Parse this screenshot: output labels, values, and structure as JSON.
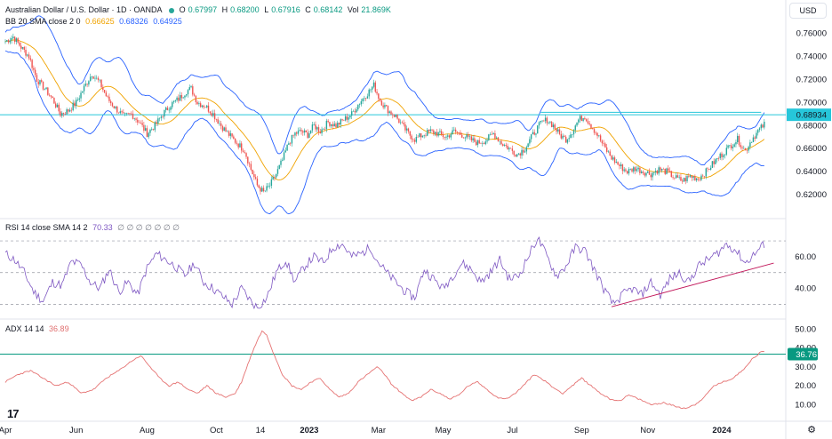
{
  "header": {
    "title": "Australian Dollar / U.S. Dollar · 1D · OANDA",
    "ohlc": {
      "o_label": "O",
      "o": "0.67997",
      "h_label": "H",
      "h": "0.68200",
      "l_label": "L",
      "l": "0.67916",
      "c_label": "C",
      "c": "0.68142",
      "vol_label": "Vol",
      "vol": "21.869K"
    }
  },
  "currency_button": "USD",
  "indicators": {
    "bb": {
      "label": "BB 20 SMA close 2 0",
      "basis": "0.66625",
      "upper": "0.68326",
      "lower": "0.64925"
    },
    "rsi": {
      "label": "RSI 14 close SMA 14 2",
      "value": "70.33",
      "extra": "∅ ∅ ∅ ∅ ∅ ∅ ∅"
    },
    "adx": {
      "label": "ADX 14 14",
      "value": "36.89"
    }
  },
  "colors": {
    "up": "#26a69a",
    "down": "#ef5350",
    "bb_band": "#2962ff",
    "bb_basis": "#f0a300",
    "hline": "#26c6da",
    "rsi": "#7e57c2",
    "adx": "#e57373",
    "adx_hline": "#089981"
  },
  "chart_data": [
    {
      "type": "candlestick",
      "name": "AUD/USD price",
      "ylim": [
        0.61,
        0.772
      ],
      "yticks": [
        "0.76000",
        "0.74000",
        "0.72000",
        "0.70000",
        "0.68000",
        "0.66000",
        "0.64000",
        "0.62000"
      ],
      "ytick_values": [
        0.76,
        0.74,
        0.72,
        0.7,
        0.68,
        0.66,
        0.64,
        0.62
      ],
      "horizontal_line": {
        "value": 0.68934,
        "label": "0.68934"
      },
      "close_path": [
        [
          0,
          0.753
        ],
        [
          5,
          0.757
        ],
        [
          10,
          0.748
        ],
        [
          15,
          0.74
        ],
        [
          20,
          0.72
        ],
        [
          25,
          0.712
        ],
        [
          30,
          0.703
        ],
        [
          35,
          0.69
        ],
        [
          40,
          0.693
        ],
        [
          45,
          0.7
        ],
        [
          50,
          0.713
        ],
        [
          55,
          0.725
        ],
        [
          60,
          0.717
        ],
        [
          65,
          0.703
        ],
        [
          70,
          0.695
        ],
        [
          75,
          0.688
        ],
        [
          80,
          0.69
        ],
        [
          85,
          0.683
        ],
        [
          90,
          0.673
        ],
        [
          95,
          0.68
        ],
        [
          100,
          0.69
        ],
        [
          105,
          0.698
        ],
        [
          110,
          0.703
        ],
        [
          115,
          0.71
        ],
        [
          118,
          0.712
        ],
        [
          122,
          0.7
        ],
        [
          127,
          0.697
        ],
        [
          132,
          0.69
        ],
        [
          137,
          0.68
        ],
        [
          142,
          0.672
        ],
        [
          147,
          0.665
        ],
        [
          152,
          0.658
        ],
        [
          156,
          0.642
        ],
        [
          160,
          0.628
        ],
        [
          164,
          0.622
        ],
        [
          168,
          0.628
        ],
        [
          172,
          0.638
        ],
        [
          176,
          0.65
        ],
        [
          180,
          0.665
        ],
        [
          184,
          0.673
        ],
        [
          188,
          0.675
        ],
        [
          192,
          0.672
        ],
        [
          196,
          0.68
        ],
        [
          200,
          0.675
        ],
        [
          205,
          0.683
        ],
        [
          210,
          0.68
        ],
        [
          215,
          0.685
        ],
        [
          220,
          0.69
        ],
        [
          225,
          0.7
        ],
        [
          230,
          0.708
        ],
        [
          234,
          0.715
        ],
        [
          237,
          0.705
        ],
        [
          240,
          0.698
        ],
        [
          244,
          0.692
        ],
        [
          248,
          0.688
        ],
        [
          252,
          0.68
        ],
        [
          256,
          0.673
        ],
        [
          260,
          0.668
        ],
        [
          265,
          0.672
        ],
        [
          270,
          0.675
        ],
        [
          275,
          0.673
        ],
        [
          280,
          0.67
        ],
        [
          285,
          0.675
        ],
        [
          290,
          0.672
        ],
        [
          295,
          0.668
        ],
        [
          300,
          0.665
        ],
        [
          305,
          0.667
        ],
        [
          310,
          0.673
        ],
        [
          315,
          0.665
        ],
        [
          320,
          0.66
        ],
        [
          325,
          0.655
        ],
        [
          330,
          0.66
        ],
        [
          335,
          0.672
        ],
        [
          340,
          0.682
        ],
        [
          344,
          0.685
        ],
        [
          348,
          0.68
        ],
        [
          352,
          0.672
        ],
        [
          356,
          0.668
        ],
        [
          360,
          0.675
        ],
        [
          364,
          0.685
        ],
        [
          368,
          0.688
        ],
        [
          372,
          0.68
        ],
        [
          376,
          0.672
        ],
        [
          380,
          0.662
        ],
        [
          385,
          0.652
        ],
        [
          390,
          0.645
        ],
        [
          395,
          0.64
        ],
        [
          400,
          0.643
        ],
        [
          405,
          0.64
        ],
        [
          410,
          0.638
        ],
        [
          415,
          0.642
        ],
        [
          420,
          0.64
        ],
        [
          425,
          0.635
        ],
        [
          430,
          0.632
        ],
        [
          435,
          0.636
        ],
        [
          440,
          0.634
        ],
        [
          445,
          0.64
        ],
        [
          450,
          0.648
        ],
        [
          455,
          0.655
        ],
        [
          460,
          0.662
        ],
        [
          465,
          0.668
        ],
        [
          470,
          0.658
        ],
        [
          474,
          0.668
        ],
        [
          478,
          0.675
        ],
        [
          482,
          0.681
        ]
      ]
    },
    {
      "type": "line",
      "name": "RSI",
      "ylim": [
        23,
        79
      ],
      "yticks": [
        "60.00",
        "40.00"
      ],
      "ytick_values": [
        60,
        40
      ],
      "bands": [
        70,
        50,
        30
      ],
      "trendline": [
        [
          385,
          28.5
        ],
        [
          488,
          56
        ]
      ],
      "values": [
        [
          0,
          62
        ],
        [
          6,
          58
        ],
        [
          12,
          50
        ],
        [
          18,
          38
        ],
        [
          24,
          32
        ],
        [
          30,
          44
        ],
        [
          36,
          42
        ],
        [
          42,
          57
        ],
        [
          48,
          55
        ],
        [
          54,
          44
        ],
        [
          60,
          40
        ],
        [
          66,
          52
        ],
        [
          72,
          38
        ],
        [
          78,
          44
        ],
        [
          84,
          36
        ],
        [
          90,
          53
        ],
        [
          96,
          62
        ],
        [
          102,
          58
        ],
        [
          108,
          54
        ],
        [
          114,
          48
        ],
        [
          120,
          56
        ],
        [
          126,
          44
        ],
        [
          132,
          40
        ],
        [
          138,
          35
        ],
        [
          144,
          30
        ],
        [
          150,
          40
        ],
        [
          156,
          32
        ],
        [
          160,
          28
        ],
        [
          166,
          34
        ],
        [
          172,
          50
        ],
        [
          178,
          58
        ],
        [
          184,
          44
        ],
        [
          190,
          54
        ],
        [
          196,
          60
        ],
        [
          202,
          56
        ],
        [
          208,
          66
        ],
        [
          214,
          68
        ],
        [
          220,
          60
        ],
        [
          226,
          62
        ],
        [
          232,
          66
        ],
        [
          236,
          58
        ],
        [
          242,
          50
        ],
        [
          248,
          44
        ],
        [
          254,
          38
        ],
        [
          260,
          34
        ],
        [
          266,
          52
        ],
        [
          272,
          46
        ],
        [
          278,
          40
        ],
        [
          284,
          48
        ],
        [
          290,
          56
        ],
        [
          296,
          52
        ],
        [
          302,
          44
        ],
        [
          308,
          50
        ],
        [
          314,
          58
        ],
        [
          320,
          46
        ],
        [
          326,
          48
        ],
        [
          332,
          60
        ],
        [
          338,
          72
        ],
        [
          344,
          60
        ],
        [
          350,
          48
        ],
        [
          356,
          54
        ],
        [
          362,
          66
        ],
        [
          368,
          64
        ],
        [
          374,
          52
        ],
        [
          380,
          40
        ],
        [
          386,
          30
        ],
        [
          392,
          36
        ],
        [
          398,
          40
        ],
        [
          404,
          36
        ],
        [
          410,
          44
        ],
        [
          416,
          36
        ],
        [
          422,
          46
        ],
        [
          428,
          50
        ],
        [
          434,
          44
        ],
        [
          440,
          54
        ],
        [
          446,
          58
        ],
        [
          452,
          62
        ],
        [
          458,
          68
        ],
        [
          464,
          64
        ],
        [
          470,
          56
        ],
        [
          476,
          62
        ],
        [
          482,
          68
        ],
        [
          488,
          71
        ]
      ]
    },
    {
      "type": "line",
      "name": "ADX",
      "ylim": [
        4,
        54
      ],
      "yticks": [
        "50.00",
        "40.00",
        "30.00",
        "20.00",
        "10.00"
      ],
      "ytick_values": [
        50,
        40,
        30,
        20,
        10
      ],
      "horizontal_line": {
        "value": 36.76,
        "label": "36.76"
      },
      "values": [
        [
          0,
          22
        ],
        [
          8,
          26
        ],
        [
          16,
          28
        ],
        [
          24,
          24
        ],
        [
          32,
          20
        ],
        [
          40,
          22
        ],
        [
          48,
          16
        ],
        [
          56,
          18
        ],
        [
          64,
          24
        ],
        [
          72,
          28
        ],
        [
          80,
          33
        ],
        [
          86,
          36
        ],
        [
          92,
          30
        ],
        [
          98,
          24
        ],
        [
          104,
          20
        ],
        [
          110,
          22
        ],
        [
          116,
          18
        ],
        [
          122,
          16
        ],
        [
          128,
          20
        ],
        [
          134,
          16
        ],
        [
          140,
          14
        ],
        [
          146,
          16
        ],
        [
          150,
          22
        ],
        [
          156,
          36
        ],
        [
          160,
          44
        ],
        [
          163,
          49
        ],
        [
          166,
          47
        ],
        [
          170,
          38
        ],
        [
          176,
          26
        ],
        [
          182,
          20
        ],
        [
          188,
          18
        ],
        [
          194,
          22
        ],
        [
          200,
          24
        ],
        [
          206,
          18
        ],
        [
          212,
          14
        ],
        [
          218,
          16
        ],
        [
          224,
          22
        ],
        [
          230,
          26
        ],
        [
          236,
          30
        ],
        [
          240,
          27
        ],
        [
          246,
          20
        ],
        [
          252,
          16
        ],
        [
          258,
          12
        ],
        [
          264,
          14
        ],
        [
          270,
          18
        ],
        [
          276,
          16
        ],
        [
          282,
          13
        ],
        [
          288,
          15
        ],
        [
          294,
          20
        ],
        [
          300,
          22
        ],
        [
          306,
          18
        ],
        [
          312,
          14
        ],
        [
          318,
          13
        ],
        [
          324,
          16
        ],
        [
          330,
          21
        ],
        [
          336,
          26
        ],
        [
          342,
          23
        ],
        [
          348,
          19
        ],
        [
          354,
          16
        ],
        [
          360,
          20
        ],
        [
          366,
          24
        ],
        [
          372,
          20
        ],
        [
          378,
          16
        ],
        [
          384,
          13
        ],
        [
          390,
          12
        ],
        [
          396,
          15
        ],
        [
          402,
          13
        ],
        [
          410,
          10
        ],
        [
          418,
          11
        ],
        [
          426,
          9
        ],
        [
          432,
          8
        ],
        [
          438,
          10
        ],
        [
          444,
          14
        ],
        [
          450,
          20
        ],
        [
          456,
          22
        ],
        [
          462,
          24
        ],
        [
          468,
          28
        ],
        [
          474,
          34
        ],
        [
          480,
          38
        ]
      ]
    }
  ],
  "x_axis": {
    "labels": [
      "Apr",
      "Jun",
      "Aug",
      "Oct",
      "14",
      "2023",
      "Mar",
      "May",
      "Jul",
      "Sep",
      "Nov",
      "2024"
    ],
    "positions": [
      0,
      45,
      90,
      134,
      162,
      193,
      237,
      278,
      322,
      366,
      408,
      455
    ],
    "bold": [
      "2023",
      "2024"
    ]
  }
}
